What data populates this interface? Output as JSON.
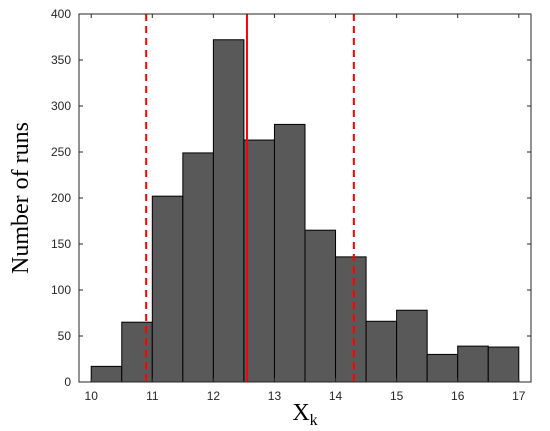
{
  "chart_data": {
    "type": "bar",
    "subtype": "histogram",
    "xlabel": "X",
    "xlabel_subscript": "k",
    "ylabel": "Number of runs",
    "xlim": [
      9.8,
      17.2
    ],
    "ylim": [
      0,
      400
    ],
    "xticks": [
      10,
      11,
      12,
      13,
      14,
      15,
      16,
      17
    ],
    "yticks": [
      0,
      50,
      100,
      150,
      200,
      250,
      300,
      350,
      400
    ],
    "bin_width": 0.5,
    "bin_left_edges": [
      10,
      10.5,
      11,
      11.5,
      12,
      12.5,
      13,
      13.5,
      14,
      14.5,
      15,
      15.5,
      16,
      16.5
    ],
    "counts": [
      17,
      65,
      202,
      249,
      372,
      263,
      280,
      165,
      136,
      66,
      78,
      30,
      39,
      38
    ],
    "bar_color": "#595959",
    "bar_edge_color": "#000000",
    "reference_lines": [
      {
        "x": 12.55,
        "style": "solid",
        "color": "#ff0000"
      },
      {
        "x": 10.9,
        "style": "dashed",
        "color": "#ff0000"
      },
      {
        "x": 14.3,
        "style": "dashed",
        "color": "#ff0000"
      }
    ],
    "grid": false,
    "legend": "none"
  }
}
